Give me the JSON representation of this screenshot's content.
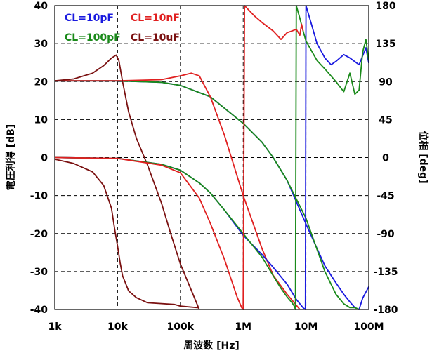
{
  "chart_data": {
    "type": "line",
    "xlabel": "周波数 [Hz]",
    "ylabel_left": "電圧利得 [dB]",
    "ylabel_right": "位相 [deg]",
    "x_scale": "log",
    "xlim": [
      1000,
      100000000
    ],
    "ylim_left": [
      -40,
      40
    ],
    "ylim_right": [
      -180,
      180
    ],
    "x_ticks": [
      "1k",
      "10k",
      "100k",
      "1M",
      "10M",
      "100M"
    ],
    "y_ticks_left": [
      "40",
      "30",
      "20",
      "10",
      "0",
      "-10",
      "-20",
      "-30",
      "-40"
    ],
    "y_ticks_right": [
      "180",
      "135",
      "90",
      "45",
      "0",
      "-45",
      "-90",
      "-135",
      "-180"
    ],
    "grid": true,
    "legend_position": "top-left",
    "legend": [
      {
        "label": "CL=10pF",
        "color": "#1a1adf"
      },
      {
        "label": "CL=10nF",
        "color": "#e02020"
      },
      {
        "label": "CL=100pF",
        "color": "#1a8a1a"
      },
      {
        "label": "CL=10uF",
        "color": "#7a1010"
      }
    ],
    "series": [
      {
        "name": "CL=10pF",
        "kind": "gain",
        "axis": "left",
        "color": "#1a1adf",
        "x": [
          1000,
          10000,
          50000,
          100000,
          300000,
          1000000,
          2000000,
          3000000,
          5000000,
          10000000,
          20000000,
          30000000,
          40000000,
          50000000,
          60000000,
          70000000,
          80000000,
          100000000
        ],
        "y": [
          20.2,
          20.2,
          19.8,
          19.0,
          16.0,
          9.0,
          4.0,
          0.0,
          -6.0,
          -17.5,
          -28.5,
          -33.0,
          -36.0,
          -38.0,
          -39.5,
          -40.0,
          -37.0,
          -34.0
        ]
      },
      {
        "name": "CL=100pF",
        "kind": "gain",
        "axis": "left",
        "color": "#1a8a1a",
        "x": [
          1000,
          10000,
          50000,
          100000,
          300000,
          1000000,
          2000000,
          3000000,
          5000000,
          10000000,
          20000000,
          30000000,
          40000000,
          50000000,
          60000000,
          70000000
        ],
        "y": [
          20.2,
          20.2,
          19.8,
          19.0,
          16.0,
          9.0,
          4.0,
          0.0,
          -6.0,
          -16.0,
          -30.0,
          -36.0,
          -38.5,
          -39.5,
          -39.5,
          -40.0
        ]
      },
      {
        "name": "CL=10nF",
        "kind": "gain",
        "axis": "left",
        "color": "#e02020",
        "x": [
          1000,
          10000,
          50000,
          100000,
          150000,
          200000,
          300000,
          500000,
          1000000,
          2000000,
          3000000,
          5000000,
          8000000
        ],
        "y": [
          20.2,
          20.2,
          20.5,
          21.5,
          22.2,
          21.5,
          16.0,
          6.0,
          -10.0,
          -24.0,
          -31.0,
          -36.0,
          -40.0
        ]
      },
      {
        "name": "CL=10uF",
        "kind": "gain",
        "axis": "left",
        "color": "#7a1010",
        "x": [
          1000,
          2000,
          4000,
          6000,
          8000,
          9500,
          10500,
          12000,
          15000,
          20000,
          30000,
          50000,
          70000,
          100000,
          150000,
          200000
        ],
        "y": [
          20.2,
          20.7,
          22.2,
          24.2,
          26.2,
          27.0,
          25.5,
          20.0,
          12.0,
          5.0,
          -2.0,
          -12.0,
          -20.0,
          -28.0,
          -35.0,
          -40.0
        ]
      },
      {
        "name": "CL=10pF",
        "kind": "phase",
        "axis": "right",
        "color": "#1a1adf",
        "x": [
          1000,
          10000,
          50000,
          100000,
          200000,
          300000,
          500000,
          1000000,
          2000000,
          3000000,
          5000000,
          7000000,
          9000000,
          9800000,
          10000000,
          12000000,
          15000000,
          20000000,
          25000000,
          30000000,
          40000000,
          50000000,
          70000000,
          90000000,
          100000000
        ],
        "y": [
          0,
          -1,
          -8,
          -15,
          -30,
          -42,
          -62,
          -92,
          -115,
          -130,
          -150,
          -168,
          -178,
          -180,
          180,
          160,
          135,
          118,
          110,
          114,
          122,
          118,
          110,
          130,
          112
        ]
      },
      {
        "name": "CL=100pF",
        "kind": "phase",
        "axis": "right",
        "color": "#1a8a1a",
        "x": [
          1000,
          10000,
          50000,
          100000,
          200000,
          300000,
          500000,
          1000000,
          2000000,
          3000000,
          4000000,
          5000000,
          6000000,
          6500000,
          6800000,
          7000000,
          8000000,
          9000000,
          10000000,
          15000000,
          20000000,
          30000000,
          40000000,
          50000000,
          60000000,
          70000000,
          80000000,
          90000000,
          100000000
        ],
        "y": [
          0,
          -1,
          -8,
          -15,
          -30,
          -42,
          -62,
          -90,
          -118,
          -140,
          -155,
          -165,
          -172,
          -176,
          -180,
          180,
          165,
          150,
          138,
          115,
          105,
          90,
          78,
          100,
          75,
          80,
          125,
          140,
          115
        ]
      },
      {
        "name": "CL=10nF",
        "kind": "phase",
        "axis": "right",
        "color": "#e02020",
        "x": [
          1000,
          10000,
          50000,
          100000,
          200000,
          300000,
          500000,
          800000,
          950000,
          1000000,
          1050000,
          1500000,
          2000000,
          3000000,
          4000000,
          5000000,
          6000000,
          7000000,
          8000000,
          8500000,
          9000000
        ],
        "y": [
          0,
          -1,
          -9,
          -18,
          -48,
          -78,
          -120,
          -165,
          -178,
          -180,
          180,
          168,
          160,
          150,
          140,
          148,
          150,
          152,
          145,
          158,
          150
        ]
      },
      {
        "name": "CL=10uF",
        "kind": "phase",
        "axis": "right",
        "color": "#7a1010",
        "x": [
          1000,
          2000,
          4000,
          6000,
          8000,
          9000,
          10000,
          11000,
          12000,
          15000,
          20000,
          30000,
          50000,
          80000,
          100000,
          200000
        ],
        "y": [
          -2,
          -7,
          -17,
          -33,
          -60,
          -85,
          -105,
          -125,
          -140,
          -158,
          -166,
          -172,
          -173,
          -174,
          -176,
          -178
        ]
      }
    ]
  }
}
